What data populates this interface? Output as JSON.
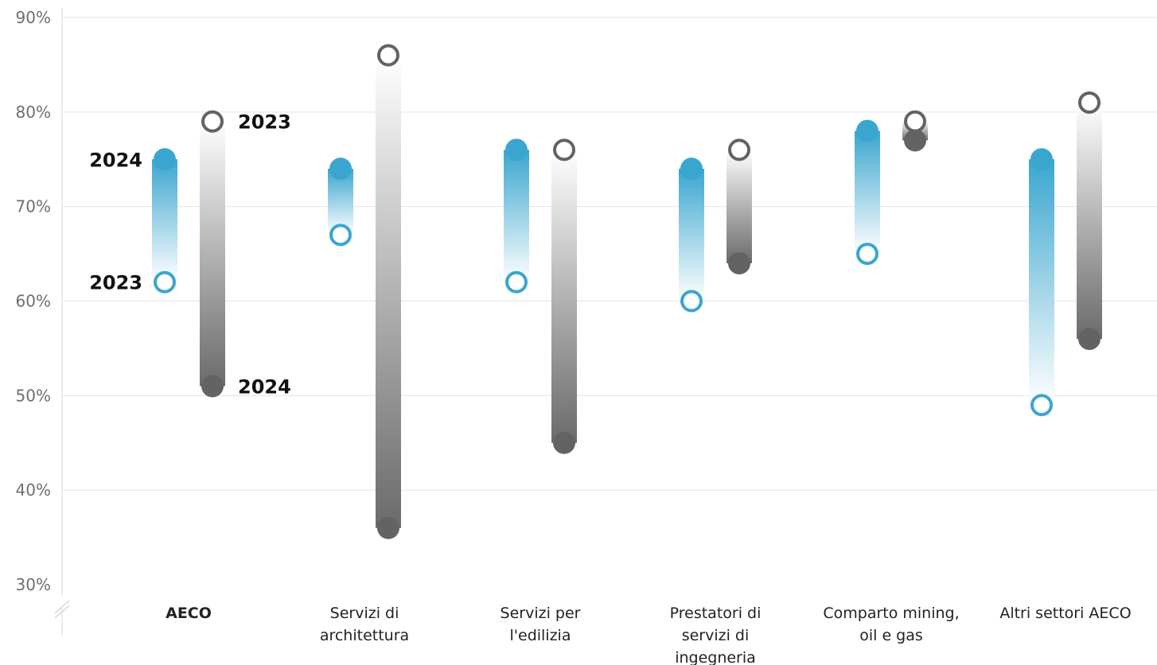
{
  "chart_data": {
    "type": "dumbbell",
    "ylim": [
      30,
      90
    ],
    "yticks": [
      {
        "value": 30,
        "label": "30%"
      },
      {
        "value": 40,
        "label": "40%"
      },
      {
        "value": 50,
        "label": "50%"
      },
      {
        "value": 60,
        "label": "60%"
      },
      {
        "value": 70,
        "label": "70%"
      },
      {
        "value": 80,
        "label": "80%"
      },
      {
        "value": 90,
        "label": "90%"
      }
    ],
    "grid": true,
    "categories": [
      {
        "label": [
          "AECO"
        ],
        "bold": true
      },
      {
        "label": [
          "Servizi di",
          "architettura"
        ],
        "bold": false
      },
      {
        "label": [
          "Servizi per",
          "l'edilizia"
        ],
        "bold": false
      },
      {
        "label": [
          "Prestatori di",
          "servizi di",
          "ingegneria"
        ],
        "bold": false
      },
      {
        "label": [
          "Comparto mining,",
          "oil e gas"
        ],
        "bold": false
      },
      {
        "label": [
          "Altri settori AECO"
        ],
        "bold": false
      }
    ],
    "series": [
      {
        "color": "#3aa6cf",
        "values_2023": [
          62,
          67,
          62,
          60,
          65,
          49
        ],
        "values_2024": [
          75,
          74,
          76,
          74,
          78,
          75
        ]
      },
      {
        "color": "#636363",
        "values_2023": [
          79,
          86,
          76,
          76,
          79,
          81
        ],
        "values_2024": [
          51,
          36,
          45,
          64,
          77,
          56
        ]
      }
    ],
    "annotations": [
      {
        "text": "2024",
        "category": 0,
        "series": 0,
        "year": "2024",
        "side": "left"
      },
      {
        "text": "2023",
        "category": 0,
        "series": 0,
        "year": "2023",
        "side": "left"
      },
      {
        "text": "2023",
        "category": 0,
        "series": 1,
        "year": "2023",
        "side": "right"
      },
      {
        "text": "2024",
        "category": 0,
        "series": 1,
        "year": "2024",
        "side": "right"
      }
    ]
  }
}
